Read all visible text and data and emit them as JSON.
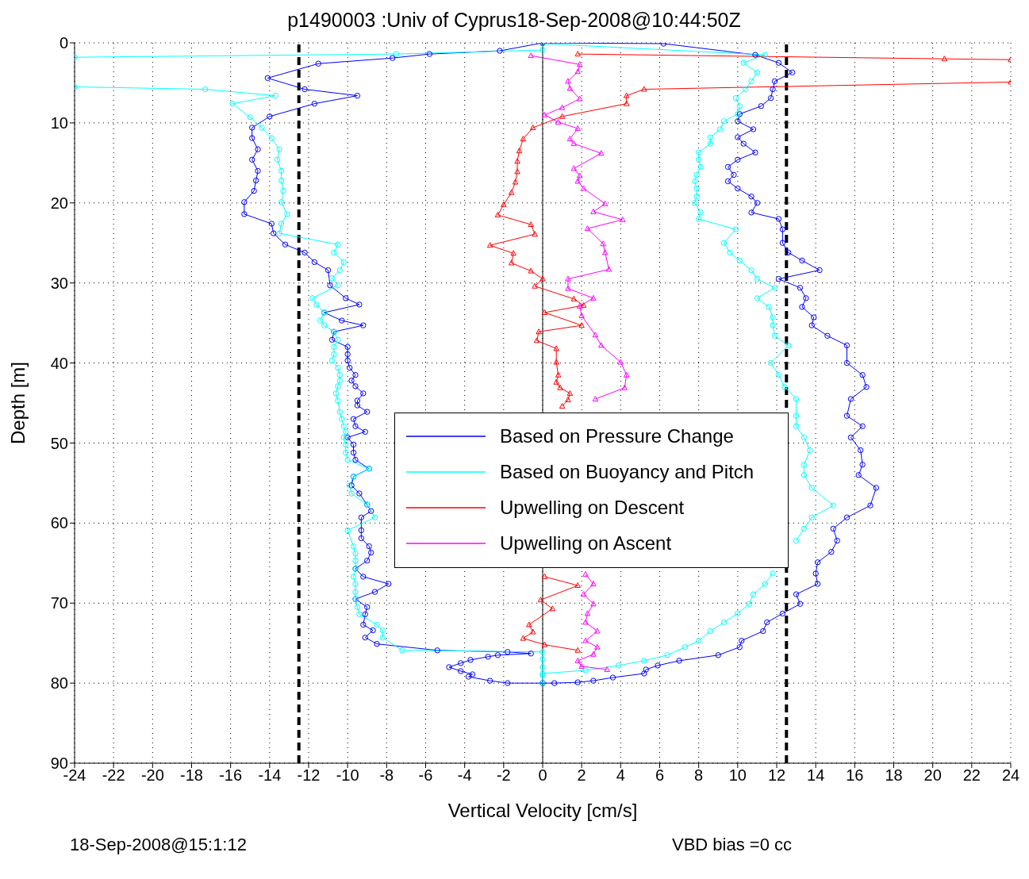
{
  "chart_data": {
    "type": "line",
    "orientation": "horizontal",
    "title": "p1490003 :Univ of Cyprus18-Sep-2008@10:44:50Z",
    "xlabel": "Vertical Velocity [cm/s]",
    "ylabel": "Depth [m]",
    "xlim": [
      -24,
      24
    ],
    "xticks": [
      -24,
      -22,
      -20,
      -18,
      -16,
      -14,
      -12,
      -10,
      -8,
      -6,
      -4,
      -2,
      0,
      2,
      4,
      6,
      8,
      10,
      12,
      14,
      16,
      18,
      20,
      22,
      24
    ],
    "ylim": [
      90,
      0
    ],
    "yticks": [
      0,
      10,
      20,
      30,
      40,
      50,
      60,
      70,
      80,
      90
    ],
    "grid": true,
    "legend": "center",
    "series": [
      {
        "name": "Based on Pressure Change",
        "color": "#0000ff",
        "marker": "circle",
        "values": [
          0,
          -2.2,
          -5.8,
          -7.7,
          -11.5,
          -14.1,
          -12.2,
          -9.5,
          -11.7,
          -14.0,
          -14.9,
          -14.9,
          -14.6,
          -14.9,
          -14.6,
          -14.7,
          -14.8,
          -15.3,
          -15.3,
          -13.9,
          -13.8,
          -13.2,
          -12.2,
          -11.7,
          -11.0,
          -10.9,
          -10.1,
          -9.4,
          -11.2,
          -10.3,
          -9.2,
          -10.7,
          -10.8,
          -10.0,
          -10.0,
          -10.0,
          -9.9,
          -9.6,
          -9.8,
          -9.6,
          -9.2,
          -9.5,
          -9.5,
          -9.0,
          -9.7,
          -9.6,
          -9.1,
          -10.0,
          -9.7,
          -9.7,
          -9.6,
          -8.9,
          -9.7,
          -9.8,
          -9.4,
          -9.0,
          -8.8,
          -9.3,
          -9.3,
          -9.3,
          -8.9,
          -8.8,
          -9.0,
          -9.6,
          -9.2,
          -7.9,
          -8.6,
          -9.6,
          -9.0,
          -9.1,
          -9.2,
          -8.7,
          -9.1,
          -8.5,
          -5.4,
          -1.8,
          -0.6,
          -2.3,
          -2.8,
          -3.7,
          -4.2,
          -4.8,
          -4.2,
          -3.6,
          -3.8,
          -2.7,
          -1.8,
          0
        ],
        "x": [
          0,
          1.0,
          1.4,
          1.9,
          2.6,
          4.4,
          5.8,
          6.6,
          7.6,
          9.2,
          10.6,
          11.9,
          13.3,
          14.6,
          16.0,
          17.2,
          18.5,
          19.9,
          21.4,
          22.6,
          23.8,
          25.2,
          26.2,
          27.4,
          28.4,
          30.3,
          31.9,
          32.7,
          33.7,
          34.7,
          35.3,
          36.1,
          37.1,
          38.0,
          38.9,
          39.7,
          40.6,
          41.5,
          42.2,
          42.9,
          43.8,
          44.7,
          45.3,
          46.1,
          47.0,
          47.9,
          48.6,
          49.3,
          50.2,
          51.2,
          52.1,
          53.2,
          54.2,
          55.3,
          56.3,
          57.7,
          58.5,
          59.3,
          60.9,
          61.9,
          62.9,
          63.7,
          64.7,
          65.7,
          66.7,
          67.6,
          68.6,
          69.5,
          70.5,
          71.4,
          72.7,
          73.4,
          74.3,
          75.1,
          75.9,
          76.1,
          76.3,
          76.5,
          76.7,
          77.1,
          77.5,
          78.0,
          78.5,
          78.9,
          79.2,
          79.7,
          80.0,
          80.0
        ]
      },
      {
        "color": "#0000ff",
        "marker": "circle",
        "values": [
          0,
          0.6,
          1.8,
          2.6,
          3.6,
          5.2,
          5.3,
          5.9,
          7.0,
          9.0,
          10.1,
          10.2,
          11.3,
          11.5,
          12.3,
          13.2,
          13.0,
          14.1,
          14.0,
          14.1,
          14.8,
          15.1,
          14.9,
          15.6,
          16.8,
          17.1,
          16.2,
          16.4,
          16.3,
          15.8,
          16.4,
          15.6,
          15.8,
          16.6,
          16.4,
          15.6,
          15.6,
          14.6,
          13.8,
          13.9,
          13.3,
          13.5,
          13.2,
          12.1,
          14.2,
          13.3,
          12.6,
          12.3,
          12.3,
          12.1,
          10.7,
          11.0,
          10.7,
          10.0,
          9.5,
          9.8,
          9.5,
          10.0,
          10.9,
          10.3,
          10.0,
          10.8,
          10.0,
          10.1,
          11.2,
          11.7,
          11.8,
          11.9,
          12.8,
          12.1,
          10.9,
          6.2,
          0
        ],
        "x": [
          80.0,
          80.0,
          79.9,
          79.7,
          79.3,
          78.8,
          78.3,
          77.8,
          77.2,
          76.5,
          75.5,
          74.7,
          73.5,
          72.4,
          71.3,
          70.1,
          68.9,
          67.6,
          66.3,
          64.9,
          63.6,
          62.2,
          60.7,
          59.3,
          57.8,
          55.6,
          54.0,
          52.7,
          50.9,
          49.3,
          47.9,
          46.6,
          44.5,
          43.0,
          41.5,
          40.0,
          37.8,
          36.6,
          35.3,
          34.3,
          33.0,
          31.9,
          30.6,
          29.5,
          28.4,
          27.2,
          26.2,
          25.0,
          23.3,
          22.0,
          21.2,
          20.0,
          19.2,
          18.2,
          17.3,
          16.5,
          15.5,
          14.6,
          13.7,
          12.6,
          11.8,
          10.8,
          9.8,
          8.9,
          7.9,
          6.9,
          5.8,
          4.8,
          3.7,
          2.5,
          1.5,
          0.1,
          0
        ]
      },
      {
        "name": "Based on Buoyancy and Pitch",
        "color": "#00ffff",
        "marker": "circle",
        "values": [
          0,
          -7.5,
          -24,
          null,
          -24,
          -17.3,
          -13.7,
          -15.9,
          -15.0,
          -14.4,
          -13.9,
          -13.5,
          -13.6,
          -13.4,
          -13.4,
          -13.3,
          -13.4,
          -13.1,
          -13.4,
          -13.5,
          -10.5,
          -10.7,
          -10.2,
          -10.4,
          -10.8,
          -10.5,
          -11.8,
          -11.6,
          -11.2,
          -11.4,
          -11.2,
          -10.7,
          -10.5,
          -10.7,
          -10.7,
          -10.8,
          -10.5,
          -10.4,
          -10.4,
          -10.5,
          -10.6,
          -10.5,
          -10.4,
          -10.3,
          -10.2,
          -10.1,
          -10.2,
          -10.1,
          -10.1,
          -10.0,
          -8.9,
          -9.7,
          -9.9,
          -9.8,
          -9.0,
          -8.6,
          -10.0,
          -9.7,
          -9.6,
          -9.6,
          -9.6,
          -9.7,
          -9.6,
          -9.6,
          -9.6,
          -9.5,
          -9.4,
          -8.5,
          -8.2,
          -8.2,
          -7.2,
          0,
          0,
          0,
          0,
          0
        ],
        "x": [
          0.9,
          1.4,
          1.8,
          null,
          5.5,
          5.8,
          6.6,
          7.6,
          9.3,
          10.6,
          11.9,
          13.3,
          14.6,
          16.0,
          17.2,
          18.5,
          19.9,
          21.4,
          22.6,
          23.8,
          25.2,
          26.2,
          27.4,
          28.4,
          29.4,
          30.3,
          31.9,
          32.7,
          33.7,
          34.7,
          35.3,
          36.1,
          37.1,
          38.0,
          38.9,
          39.7,
          40.6,
          41.5,
          42.2,
          42.9,
          43.8,
          44.7,
          46.1,
          47.0,
          47.9,
          48.6,
          49.3,
          50.2,
          51.2,
          52.1,
          53.2,
          54.2,
          55.3,
          56.3,
          57.7,
          59.3,
          60.9,
          62.9,
          63.8,
          64.7,
          65.7,
          66.7,
          67.6,
          68.6,
          69.5,
          70.5,
          71.4,
          72.7,
          73.4,
          74.3,
          75.9,
          76.1,
          77,
          78,
          79,
          80
        ]
      },
      {
        "color": "#00ffff",
        "marker": "circle",
        "values": [
          0,
          2.2,
          3.9,
          5.2,
          6.4,
          7.3,
          8.0,
          8.6,
          9.3,
          10.0,
          10.6,
          10.8,
          11.4,
          11.8,
          null,
          13.0,
          13.4,
          13.8,
          14.9,
          13.8,
          13.4,
          13.4,
          13.7,
          13.4,
          13.0,
          13.0,
          13.0,
          12.4,
          12.1,
          11.7,
          12.6,
          11.9,
          11.8,
          11.8,
          11.6,
          11.0,
          11.9,
          11.0,
          10.7,
          10.1,
          9.6,
          9.3,
          9.9,
          8.0,
          8.1,
          7.8,
          7.9,
          7.9,
          7.8,
          7.9,
          8.1,
          8.0,
          8.0,
          8.6,
          8.6,
          9.1,
          9.3,
          10.0,
          10.1,
          9.9,
          10.4,
          10.7,
          11.0,
          10.3,
          11.4,
          0
        ],
        "x": [
          78.8,
          78.4,
          77.8,
          77.2,
          76.5,
          75.5,
          74.7,
          73.5,
          72.4,
          71.3,
          70.1,
          68.9,
          67.6,
          66.3,
          null,
          62.2,
          60.7,
          59.3,
          57.8,
          55.6,
          54.0,
          52.7,
          50.9,
          49.3,
          47.9,
          46.6,
          44.5,
          43.0,
          41.5,
          40.0,
          37.8,
          36.6,
          35.3,
          34.3,
          33.0,
          31.9,
          30.6,
          29.5,
          28.4,
          27.2,
          26.2,
          25.0,
          23.3,
          22.0,
          21.2,
          20.0,
          19.2,
          18.2,
          17.3,
          16.5,
          15.5,
          14.6,
          13.7,
          12.6,
          11.8,
          10.8,
          9.8,
          8.9,
          7.9,
          6.9,
          5.8,
          4.8,
          3.7,
          2.5,
          1.5,
          0.1
        ]
      },
      {
        "name": "Upwelling on Descent",
        "color": "#ff0000",
        "marker": "triangle",
        "values": [
          1.8,
          20.6,
          24,
          null,
          24,
          5.2,
          4.3,
          4.3,
          1.0,
          -0.5,
          -1.0,
          -1.2,
          -1.3,
          -1.3,
          -1.4,
          -1.6,
          -2.0,
          -2.3,
          -0.6,
          -0.4,
          -2.7,
          -1.5,
          -1.6,
          -0.6,
          0,
          -0.4,
          1.6,
          2.1,
          0.1,
          2.0,
          -0.2,
          -0.3,
          0.7,
          0.7,
          0.8,
          0.7,
          0.9,
          1.4,
          1.3,
          1.0,
          null,
          0.1,
          1.8,
          -0.1,
          0.5,
          -0.7,
          -0.5,
          -1.0,
          0.1,
          1.8
        ],
        "x": [
          1.4,
          2.0,
          2.1,
          null,
          4.9,
          5.8,
          6.6,
          7.6,
          9.2,
          10.6,
          12.0,
          13.5,
          14.8,
          16.1,
          17.4,
          18.7,
          20.2,
          21.5,
          22.7,
          23.9,
          25.3,
          26.3,
          27.5,
          28.5,
          29.5,
          30.4,
          32.0,
          32.8,
          33.7,
          35.3,
          36.1,
          37.2,
          38.2,
          39.9,
          41.5,
          42.4,
          43.1,
          43.8,
          44.6,
          45.4,
          null,
          66.7,
          67.8,
          69.6,
          70.7,
          72.7,
          73.6,
          74.4,
          75.2,
          75.9
        ]
      },
      {
        "name": "Upwelling on Ascent",
        "color": "#ff00ff",
        "marker": "triangle",
        "values": [
          -0.6,
          1.9,
          1.8,
          1.3,
          1.4,
          1.9,
          1.0,
          0.1,
          0.8,
          1.8,
          1.4,
          1.6,
          3.0,
          1.6,
          1.9,
          1.8,
          2.1,
          3.2,
          2.6,
          4.1,
          2.3,
          3.1,
          3.2,
          3.4,
          1.3,
          1.3,
          2.6,
          1.9,
          2.0,
          2.7,
          3.0,
          4.0,
          4.3,
          4.2,
          2.7,
          null,
          2.2,
          2.6,
          2.1,
          2.6,
          2.3,
          2.2,
          2.8,
          2.2,
          2.8,
          2.6,
          1.8,
          2.0,
          3.3
        ],
        "x": [
          1.6,
          2.7,
          3.6,
          4.8,
          5.7,
          7.0,
          8.1,
          9.0,
          9.9,
          10.7,
          12.0,
          12.6,
          13.8,
          15.7,
          16.6,
          17.3,
          18.2,
          20.1,
          21.1,
          22.1,
          23.2,
          25.1,
          26.2,
          28.3,
          29.5,
          30.7,
          31.9,
          32.9,
          34.1,
          36.5,
          37.8,
          39.9,
          41.5,
          43.1,
          44.5,
          null,
          66.4,
          67.6,
          68.9,
          70.1,
          71.3,
          72.4,
          73.5,
          74.7,
          75.5,
          76.4,
          77.2,
          77.9,
          78.3
        ]
      }
    ],
    "ref_lines": [
      {
        "axis": "x",
        "value": -12.5,
        "color": "#000000",
        "line_style": "dashed"
      },
      {
        "axis": "x",
        "value": 12.5,
        "color": "#000000",
        "line_style": "dashed"
      },
      {
        "axis": "x",
        "value": 0,
        "color": "#000000",
        "line_style": "solid"
      }
    ],
    "annotations": [
      "18-Sep-2008@15:1:12",
      "VBD bias =0 cc"
    ]
  }
}
